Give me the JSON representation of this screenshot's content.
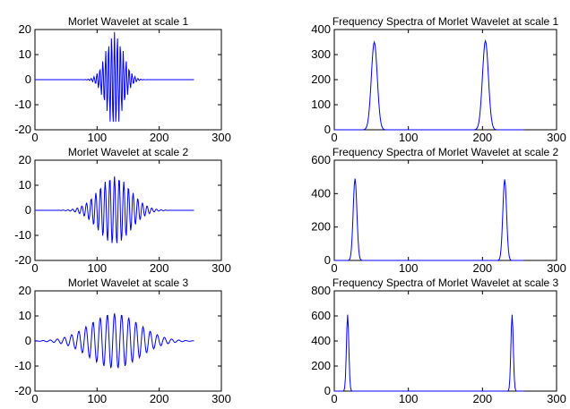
{
  "colors": {
    "series": "#0000ff",
    "axes": "#000000",
    "background": "#ffffff"
  },
  "chart_data": [
    {
      "type": "line",
      "kind": "wavelet",
      "title": "Morlet Wavelet at scale 1",
      "xlabel": "",
      "ylabel": "",
      "xlim": [
        0,
        300
      ],
      "ylim": [
        -20,
        20
      ],
      "xticks": [
        0,
        100,
        200,
        300
      ],
      "yticks": [
        -20,
        -10,
        0,
        10,
        20
      ],
      "series": [
        {
          "n": 256,
          "center": 128,
          "amplitude": 19,
          "sigma": 14,
          "period": 4.7
        }
      ],
      "grid": false
    },
    {
      "type": "line",
      "kind": "spectrum",
      "title": "Frequency Spectra of Morlet Wavelet at scale 1",
      "xlabel": "",
      "ylabel": "",
      "xlim": [
        0,
        300
      ],
      "ylim": [
        0,
        400
      ],
      "xticks": [
        0,
        100,
        200,
        300
      ],
      "yticks": [
        0,
        100,
        200,
        300,
        400
      ],
      "series": [
        {
          "n": 256,
          "peaks": [
            {
              "x": 54,
              "y": 350
            },
            {
              "x": 204,
              "y": 355
            }
          ],
          "width": 4
        }
      ],
      "grid": false
    },
    {
      "type": "line",
      "kind": "wavelet",
      "title": "Morlet Wavelet at scale 2",
      "xlabel": "",
      "ylabel": "",
      "xlim": [
        0,
        300
      ],
      "ylim": [
        -20,
        20
      ],
      "xticks": [
        0,
        100,
        200,
        300
      ],
      "yticks": [
        -20,
        -10,
        0,
        10,
        20
      ],
      "series": [
        {
          "n": 256,
          "center": 128,
          "amplitude": 13.5,
          "sigma": 26,
          "period": 7.5
        }
      ],
      "grid": false
    },
    {
      "type": "line",
      "kind": "spectrum",
      "title": "Frequency Spectra of Morlet Wavelet at scale 2",
      "xlabel": "",
      "ylabel": "",
      "xlim": [
        0,
        300
      ],
      "ylim": [
        0,
        600
      ],
      "xticks": [
        0,
        100,
        200,
        300
      ],
      "yticks": [
        0,
        200,
        400,
        600
      ],
      "series": [
        {
          "n": 256,
          "peaks": [
            {
              "x": 28,
              "y": 490
            },
            {
              "x": 230,
              "y": 485
            }
          ],
          "width": 2.5
        }
      ],
      "grid": false
    },
    {
      "type": "line",
      "kind": "wavelet",
      "title": "Morlet Wavelet at scale 3",
      "xlabel": "",
      "ylabel": "",
      "xlim": [
        0,
        300
      ],
      "ylim": [
        -20,
        20
      ],
      "xticks": [
        0,
        100,
        200,
        300
      ],
      "yticks": [
        -20,
        -10,
        0,
        10,
        20
      ],
      "series": [
        {
          "n": 256,
          "center": 128,
          "amplitude": 11,
          "sigma": 40,
          "period": 11.5
        }
      ],
      "grid": false
    },
    {
      "type": "line",
      "kind": "spectrum",
      "title": "Frequency Spectra of Morlet Wavelet at scale 3",
      "xlabel": "",
      "ylabel": "",
      "xlim": [
        0,
        300
      ],
      "ylim": [
        0,
        800
      ],
      "xticks": [
        0,
        100,
        200,
        300
      ],
      "yticks": [
        0,
        200,
        400,
        600,
        800
      ],
      "series": [
        {
          "n": 256,
          "peaks": [
            {
              "x": 18,
              "y": 610
            },
            {
              "x": 240,
              "y": 610
            }
          ],
          "width": 1.6
        }
      ],
      "grid": false
    }
  ]
}
